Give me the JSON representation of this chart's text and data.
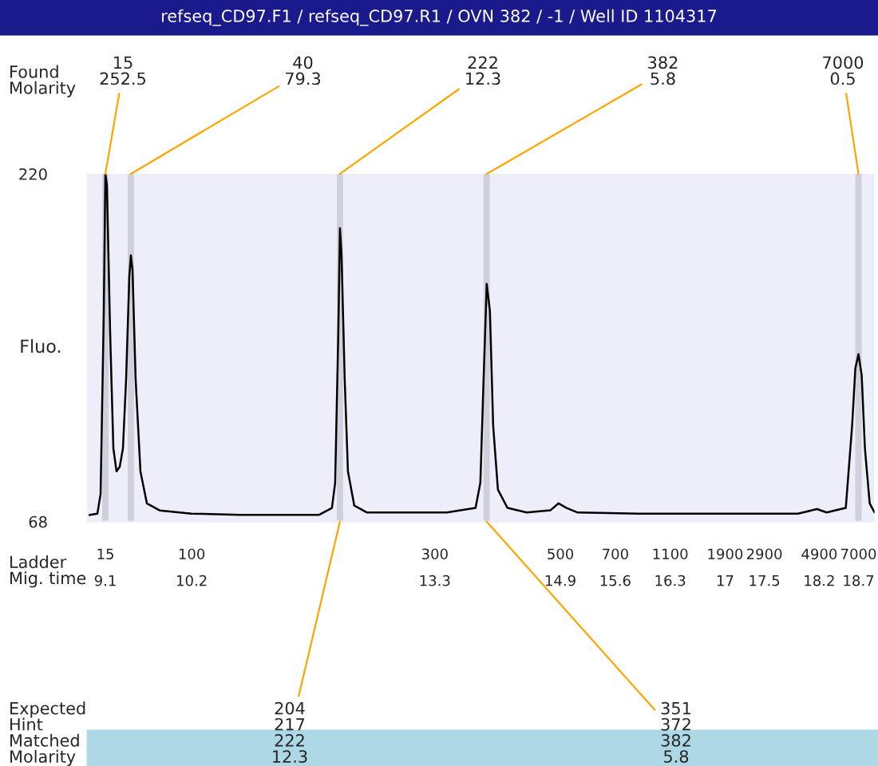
{
  "chart_data": {
    "type": "line",
    "title": "refseq_CD97.F1 / refseq_CD97.R1 / OVN 382 / -1 / Well ID 1104317",
    "ylabel": "Fluo.",
    "series": [
      {
        "color": "#000000",
        "x": [
          8.876,
          8.998,
          9.039,
          9.08,
          9.1,
          9.12,
          9.161,
          9.202,
          9.242,
          9.283,
          9.324,
          9.364,
          9.405,
          9.425,
          9.446,
          9.486,
          9.547,
          9.629,
          9.792,
          10.198,
          10.809,
          11.826,
          11.988,
          12.029,
          12.069,
          12.09,
          12.11,
          12.151,
          12.192,
          12.273,
          12.436,
          13.453,
          13.819,
          13.88,
          13.921,
          13.961,
          14.002,
          14.043,
          14.104,
          14.226,
          14.47,
          14.775,
          14.877,
          14.979,
          15.121,
          15.894,
          16.911,
          17.928,
          18.172,
          18.294,
          18.538,
          18.619,
          18.66,
          18.7,
          18.741,
          18.782,
          18.843,
          18.904
        ],
        "values": [
          70.8,
          71.5,
          80,
          160,
          220,
          215,
          150,
          100,
          90,
          92,
          100,
          130,
          175,
          184.4,
          178,
          130,
          90,
          76,
          72.9,
          71.5,
          71,
          71,
          74,
          85,
          150,
          196.3,
          185,
          130,
          90,
          75,
          72,
          72,
          74,
          85,
          130,
          171.9,
          160,
          110,
          82,
          74,
          72,
          73,
          76,
          74,
          72,
          71.5,
          71.5,
          71.5,
          73.5,
          72,
          74,
          110,
          135,
          141.2,
          132,
          100,
          76,
          72
        ]
      }
    ],
    "xlim": [
      8.876,
      18.904
    ],
    "xticks": [
      9.1,
      10.2,
      13.3,
      14.9,
      15.6,
      16.3,
      17,
      17.5,
      18.2,
      18.7
    ],
    "ylim": [
      68,
      220
    ],
    "yticks": [
      68,
      220
    ],
    "bands": [
      {
        "axis": "x",
        "from": 9.06,
        "to": 9.14,
        "color": "#d0d0dc"
      },
      {
        "axis": "x",
        "from": 9.385,
        "to": 9.465,
        "color": "#d0d0dc"
      },
      {
        "axis": "x",
        "from": 12.05,
        "to": 12.13,
        "color": "#d0d0dc"
      },
      {
        "axis": "x",
        "from": 13.92,
        "to": 14.0,
        "color": "#d0d0dc"
      },
      {
        "axis": "x",
        "from": 18.66,
        "to": 18.74,
        "color": "#d0d0dc"
      }
    ],
    "annotations": [
      "Found\nMolarity",
      "Ladder\nMig. time",
      "Expected\nHint\nMatched\nMolarity",
      {
        "text": "15\n252.5",
        "x": 9.1,
        "y": 220
      },
      {
        "text": "40\n79.3",
        "x": 9.425,
        "y": 220
      },
      {
        "text": "222\n12.3",
        "x": 12.09,
        "y": 220
      },
      {
        "text": "382\n5.8",
        "x": 13.961,
        "y": 220
      },
      {
        "text": "7000\n0.5",
        "x": 18.7,
        "y": 220
      },
      "15",
      "100",
      "300",
      "500",
      "700",
      "1100",
      "1900",
      "2900",
      "4900",
      "7000",
      {
        "text": "204\n217\n222\n12.3",
        "x": 12.09,
        "y": 68
      },
      {
        "text": "351\n372\n382\n5.8",
        "x": 13.961,
        "y": 68
      }
    ],
    "grid": false,
    "legend": false
  }
}
